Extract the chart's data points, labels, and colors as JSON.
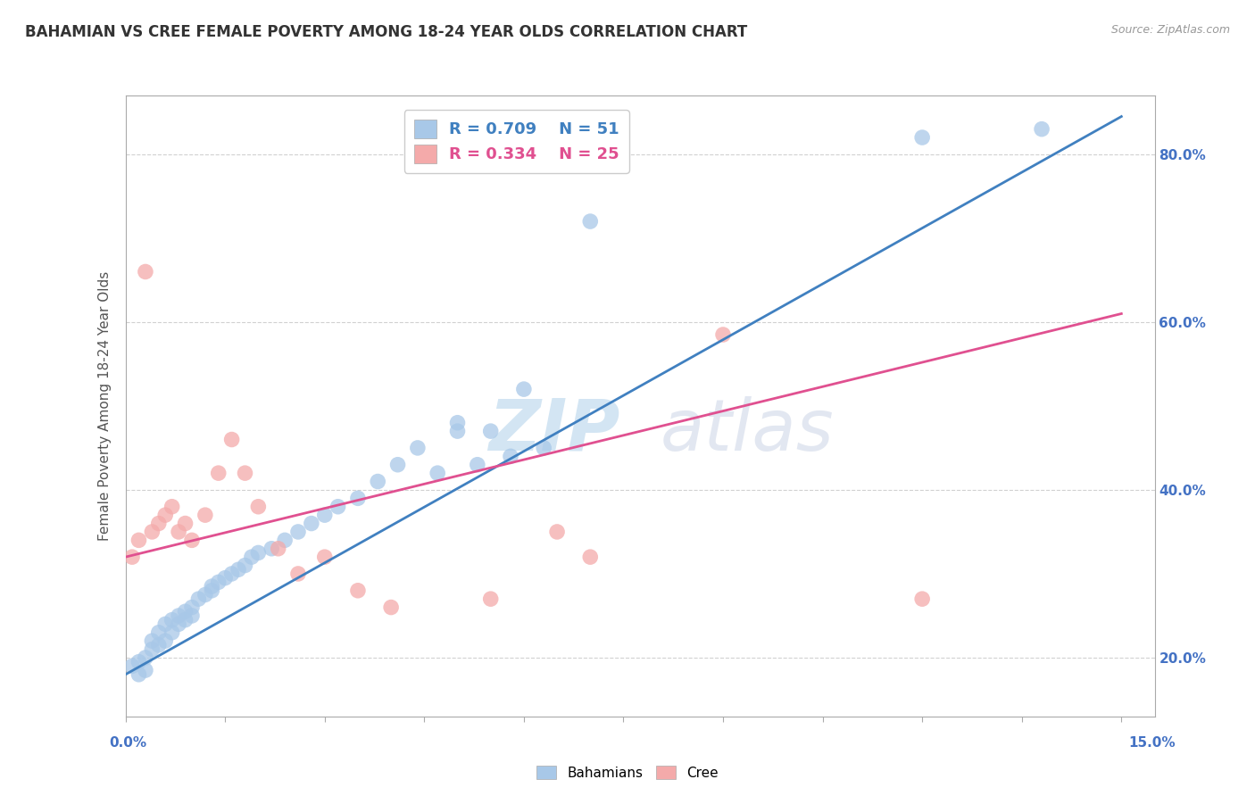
{
  "title": "BAHAMIAN VS CREE FEMALE POVERTY AMONG 18-24 YEAR OLDS CORRELATION CHART",
  "source": "Source: ZipAtlas.com",
  "ylabel": "Female Poverty Among 18-24 Year Olds",
  "watermark_zip": "ZIP",
  "watermark_atlas": "atlas",
  "legend_blue_r": "R = 0.709",
  "legend_blue_n": "N = 51",
  "legend_pink_r": "R = 0.334",
  "legend_pink_n": "N = 25",
  "blue_scatter_color": "#a8c8e8",
  "pink_scatter_color": "#f4aaaa",
  "blue_line_color": "#4080c0",
  "pink_line_color": "#e05090",
  "background_color": "#ffffff",
  "grid_color": "#cccccc",
  "ytick_color": "#4472c4",
  "xtick_label_color": "#4472c4",
  "blue_x": [
    0.001,
    0.002,
    0.002,
    0.003,
    0.003,
    0.004,
    0.004,
    0.005,
    0.005,
    0.006,
    0.006,
    0.007,
    0.007,
    0.008,
    0.008,
    0.009,
    0.009,
    0.01,
    0.01,
    0.011,
    0.012,
    0.013,
    0.013,
    0.014,
    0.015,
    0.016,
    0.017,
    0.018,
    0.019,
    0.02,
    0.022,
    0.024,
    0.026,
    0.028,
    0.03,
    0.032,
    0.035,
    0.038,
    0.041,
    0.044,
    0.047,
    0.05,
    0.053,
    0.058,
    0.063,
    0.05,
    0.055,
    0.06,
    0.07,
    0.12,
    0.138
  ],
  "blue_y": [
    0.19,
    0.195,
    0.18,
    0.2,
    0.185,
    0.22,
    0.21,
    0.23,
    0.215,
    0.24,
    0.22,
    0.245,
    0.23,
    0.25,
    0.24,
    0.255,
    0.245,
    0.26,
    0.25,
    0.27,
    0.275,
    0.28,
    0.285,
    0.29,
    0.295,
    0.3,
    0.305,
    0.31,
    0.32,
    0.325,
    0.33,
    0.34,
    0.35,
    0.36,
    0.37,
    0.38,
    0.39,
    0.41,
    0.43,
    0.45,
    0.42,
    0.47,
    0.43,
    0.44,
    0.45,
    0.48,
    0.47,
    0.52,
    0.72,
    0.82,
    0.83
  ],
  "pink_x": [
    0.001,
    0.002,
    0.003,
    0.004,
    0.005,
    0.006,
    0.007,
    0.008,
    0.009,
    0.01,
    0.012,
    0.014,
    0.016,
    0.018,
    0.02,
    0.023,
    0.026,
    0.03,
    0.035,
    0.04,
    0.055,
    0.065,
    0.07,
    0.09,
    0.12
  ],
  "pink_y": [
    0.32,
    0.34,
    0.66,
    0.35,
    0.36,
    0.37,
    0.38,
    0.35,
    0.36,
    0.34,
    0.37,
    0.42,
    0.46,
    0.42,
    0.38,
    0.33,
    0.3,
    0.32,
    0.28,
    0.26,
    0.27,
    0.35,
    0.32,
    0.585,
    0.27
  ],
  "blue_line": [
    [
      0.0,
      0.18
    ],
    [
      0.15,
      0.845
    ]
  ],
  "pink_line": [
    [
      0.0,
      0.32
    ],
    [
      0.15,
      0.61
    ]
  ],
  "xlim": [
    0.0,
    0.155
  ],
  "ylim": [
    0.13,
    0.87
  ],
  "yticks": [
    0.2,
    0.4,
    0.6,
    0.8
  ],
  "ytick_labels": [
    "20.0%",
    "40.0%",
    "60.0%",
    "80.0%"
  ],
  "xtick_labels": [
    "0.0%",
    "15.0%"
  ]
}
